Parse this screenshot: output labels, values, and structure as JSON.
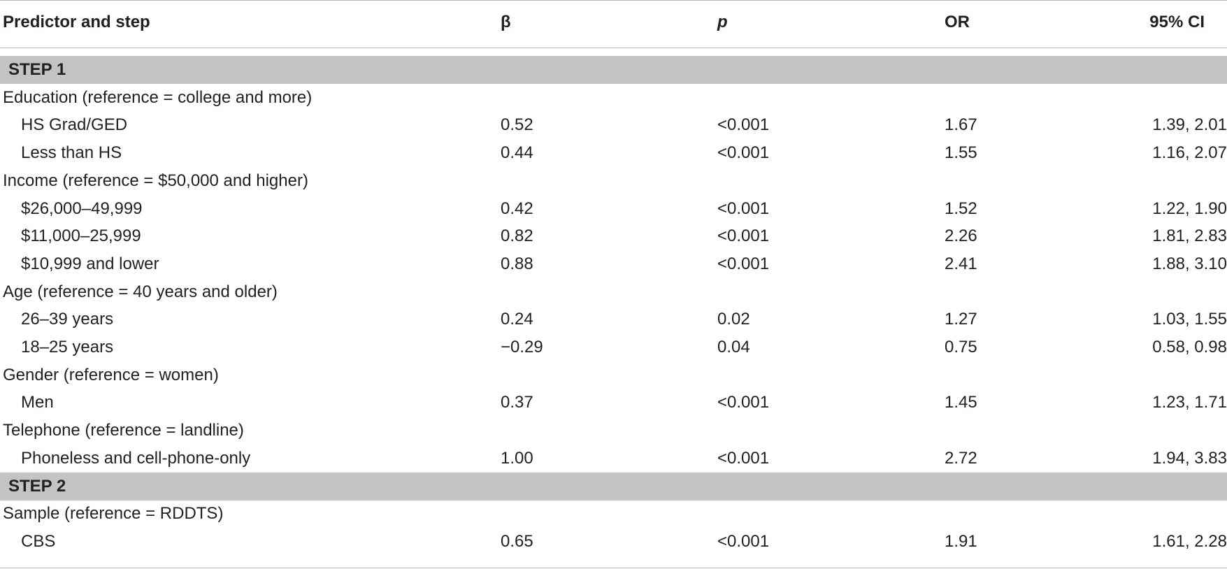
{
  "headers": {
    "predictor": "Predictor and step",
    "beta": "β",
    "p": "p",
    "or": "OR",
    "ci": "95% CI"
  },
  "rows": [
    {
      "type": "step",
      "label": "STEP 1"
    },
    {
      "type": "group",
      "label": "Education (reference = college and more)"
    },
    {
      "type": "data",
      "label": "HS Grad/GED",
      "beta": "0.52",
      "p": "<0.001",
      "or": "1.67",
      "ci": "1.39, 2.01"
    },
    {
      "type": "data",
      "label": "Less than HS",
      "beta": "0.44",
      "p": "<0.001",
      "or": "1.55",
      "ci": "1.16, 2.07"
    },
    {
      "type": "group",
      "label": "Income (reference = $50,000 and higher)"
    },
    {
      "type": "data",
      "label": "$26,000–49,999",
      "beta": "0.42",
      "p": "<0.001",
      "or": "1.52",
      "ci": "1.22, 1.90"
    },
    {
      "type": "data",
      "label": "$11,000–25,999",
      "beta": "0.82",
      "p": "<0.001",
      "or": "2.26",
      "ci": "1.81, 2.83"
    },
    {
      "type": "data",
      "label": "$10,999 and lower",
      "beta": "0.88",
      "p": "<0.001",
      "or": "2.41",
      "ci": "1.88, 3.10"
    },
    {
      "type": "group",
      "label": "Age (reference = 40 years and older)"
    },
    {
      "type": "data",
      "label": "26–39 years",
      "beta": "0.24",
      "p": "0.02",
      "or": "1.27",
      "ci": "1.03, 1.55"
    },
    {
      "type": "data",
      "label": "18–25 years",
      "beta": "−0.29",
      "p": "0.04",
      "or": "0.75",
      "ci": "0.58, 0.98"
    },
    {
      "type": "group",
      "label": "Gender (reference = women)"
    },
    {
      "type": "data",
      "label": "Men",
      "beta": "0.37",
      "p": "<0.001",
      "or": "1.45",
      "ci": "1.23, 1.71"
    },
    {
      "type": "group",
      "label": "Telephone (reference = landline)"
    },
    {
      "type": "data",
      "label": "Phoneless and cell-phone-only",
      "beta": "1.00",
      "p": "<0.001",
      "or": "2.72",
      "ci": "1.94, 3.83"
    },
    {
      "type": "step",
      "label": "STEP 2"
    },
    {
      "type": "group",
      "label": "Sample (reference = RDDTS)"
    },
    {
      "type": "data",
      "label": "CBS",
      "beta": "0.65",
      "p": "<0.001",
      "or": "1.91",
      "ci": "1.61, 2.28"
    }
  ]
}
